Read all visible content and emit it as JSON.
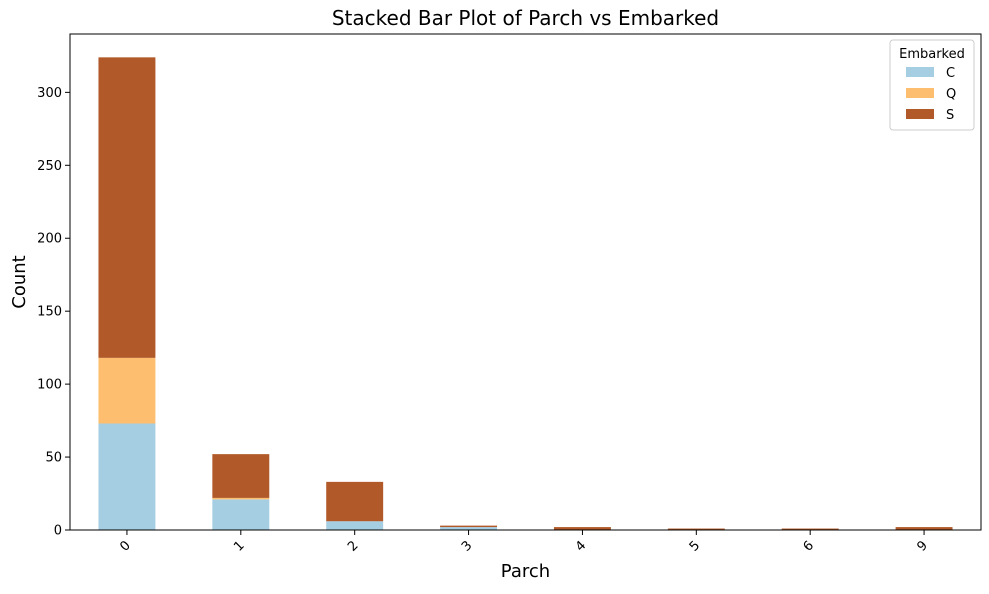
{
  "chart_data": {
    "type": "bar",
    "stacked": true,
    "title": "Stacked Bar Plot of Parch vs Embarked",
    "xlabel": "Parch",
    "ylabel": "Count",
    "categories": [
      "0",
      "1",
      "2",
      "3",
      "4",
      "5",
      "6",
      "9"
    ],
    "series": [
      {
        "name": "C",
        "color": "#a6cee3",
        "values": [
          73,
          21,
          6,
          2,
          0,
          0,
          0,
          0
        ]
      },
      {
        "name": "Q",
        "color": "#fdbf6f",
        "values": [
          45,
          1,
          0,
          0,
          0,
          0,
          0,
          0
        ]
      },
      {
        "name": "S",
        "color": "#b15928",
        "values": [
          206,
          30,
          27,
          1,
          2,
          1,
          1,
          2
        ]
      }
    ],
    "ylim": [
      0,
      340
    ],
    "yticks": [
      0,
      50,
      100,
      150,
      200,
      250,
      300
    ],
    "legend": {
      "title": "Embarked",
      "placement": "top-right"
    },
    "grid": false,
    "xtick_rotation": 45
  }
}
